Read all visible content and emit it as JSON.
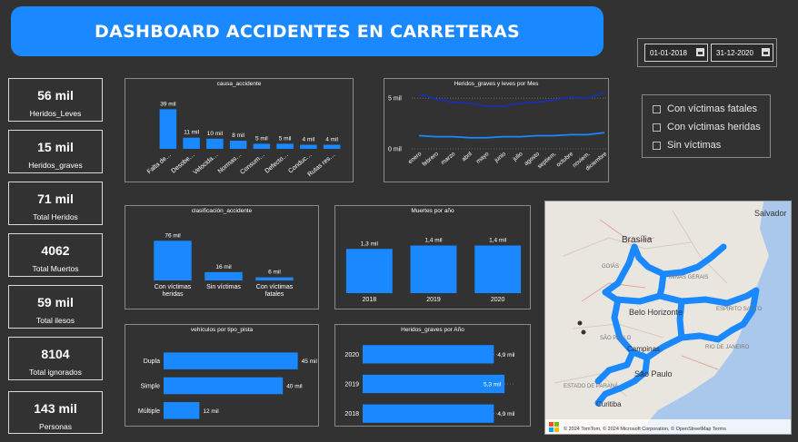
{
  "title": "DASHBOARD ACCIDENTES EN CARRETERAS",
  "dates": {
    "start": "01-01-2018",
    "end": "31-12-2020"
  },
  "kpis": [
    {
      "value": "56 mil",
      "label": "Heridos_Leves"
    },
    {
      "value": "15 mil",
      "label": "Heridos_graves"
    },
    {
      "value": "71 mil",
      "label": "Total Heridos"
    },
    {
      "value": "4062",
      "label": "Total Muertos"
    },
    {
      "value": "59 mil",
      "label": "Total ilesos"
    },
    {
      "value": "8104",
      "label": "Total ignorados"
    },
    {
      "value": "143 mil",
      "label": "Personas"
    }
  ],
  "filters": [
    "Con víctimas fatales",
    "Con víctimas heridas",
    "Sin víctimas"
  ],
  "colors": {
    "accent": "#1a88ff",
    "background": "#323232",
    "line_dark": "#1a2fb0",
    "line_light": "#1a88ff"
  },
  "chart_data": [
    {
      "type": "bar",
      "title": "causa_accidente",
      "categories": [
        "Falta de…",
        "Desobe…",
        "Velocida…",
        "Normas…",
        "Consum…",
        "Defecto…",
        "Conduc…",
        "Rutas res…"
      ],
      "values": [
        39,
        11,
        10,
        8,
        5,
        5,
        4,
        4
      ],
      "labels": [
        "39 mil",
        "11 mil",
        "10 mil",
        "8 mil",
        "5 mil",
        "5 mil",
        "4 mil",
        "4 mil"
      ],
      "ylim": [
        0,
        42
      ]
    },
    {
      "type": "line",
      "title": "Heridos_graves y leves por Mes",
      "categories": [
        "enero",
        "febrero",
        "marzo",
        "abril",
        "mayo",
        "junio",
        "julio",
        "agosto",
        "septiem.",
        "octubre",
        "noviem.",
        "diciembre"
      ],
      "yticks": [
        "5 mil",
        "0 mil"
      ],
      "ylim": [
        0,
        6
      ],
      "series": [
        {
          "values": [
            5.4,
            4.9,
            4.6,
            4.5,
            4.2,
            4.2,
            4.5,
            4.6,
            4.8,
            5.1,
            5.0,
            5.6
          ]
        },
        {
          "values": [
            1.3,
            1.2,
            1.2,
            1.1,
            1.1,
            1.2,
            1.2,
            1.3,
            1.3,
            1.4,
            1.4,
            1.6
          ]
        }
      ]
    },
    {
      "type": "bar",
      "title": "clasificación_accidente",
      "categories": [
        "Con víctimas heridas",
        "Sin víctimas",
        "Con víctimas fatales"
      ],
      "values": [
        76,
        16,
        6
      ],
      "labels": [
        "76 mil",
        "16 mil",
        "6 mil"
      ],
      "ylim": [
        0,
        80
      ]
    },
    {
      "type": "bar",
      "title": "Muertes por año",
      "categories": [
        "2018",
        "2019",
        "2020"
      ],
      "values": [
        1.3,
        1.4,
        1.4
      ],
      "labels": [
        "1,3 mil",
        "1,4 mil",
        "1,4 mil"
      ],
      "ylim": [
        0,
        1.6
      ]
    },
    {
      "type": "bar",
      "title": "vehículos por tipo_pista",
      "orientation": "horizontal",
      "categories": [
        "Dupla",
        "Simple",
        "Múltiple"
      ],
      "values": [
        45,
        40,
        12
      ],
      "labels": [
        "45 mil",
        "40 mil",
        "12 mil"
      ],
      "xlim": [
        0,
        50
      ]
    },
    {
      "type": "bar",
      "title": "Heridos_graves por Año",
      "orientation": "horizontal",
      "categories": [
        "2020",
        "2019",
        "2018"
      ],
      "values": [
        4.9,
        5.3,
        4.9
      ],
      "labels": [
        "4,9 mil",
        "5,3 mil",
        "4,9 mil"
      ],
      "xlim": [
        0,
        5.5
      ]
    }
  ],
  "map": {
    "labels": [
      "Brasília",
      "GOIÁS",
      "MINAS GERAIS",
      "Belo Horizonte",
      "ESPÍRITO SANTO",
      "SÃO PAULO",
      "Campinas",
      "RIO DE JANEIRO",
      "São Paulo",
      "ESTADO DE PARANÁ",
      "Curitiba",
      "Salvador"
    ],
    "attribution": "© 2024 TomTom, © 2024 Microsoft Corporation, © OpenStreetMap  Terms"
  }
}
